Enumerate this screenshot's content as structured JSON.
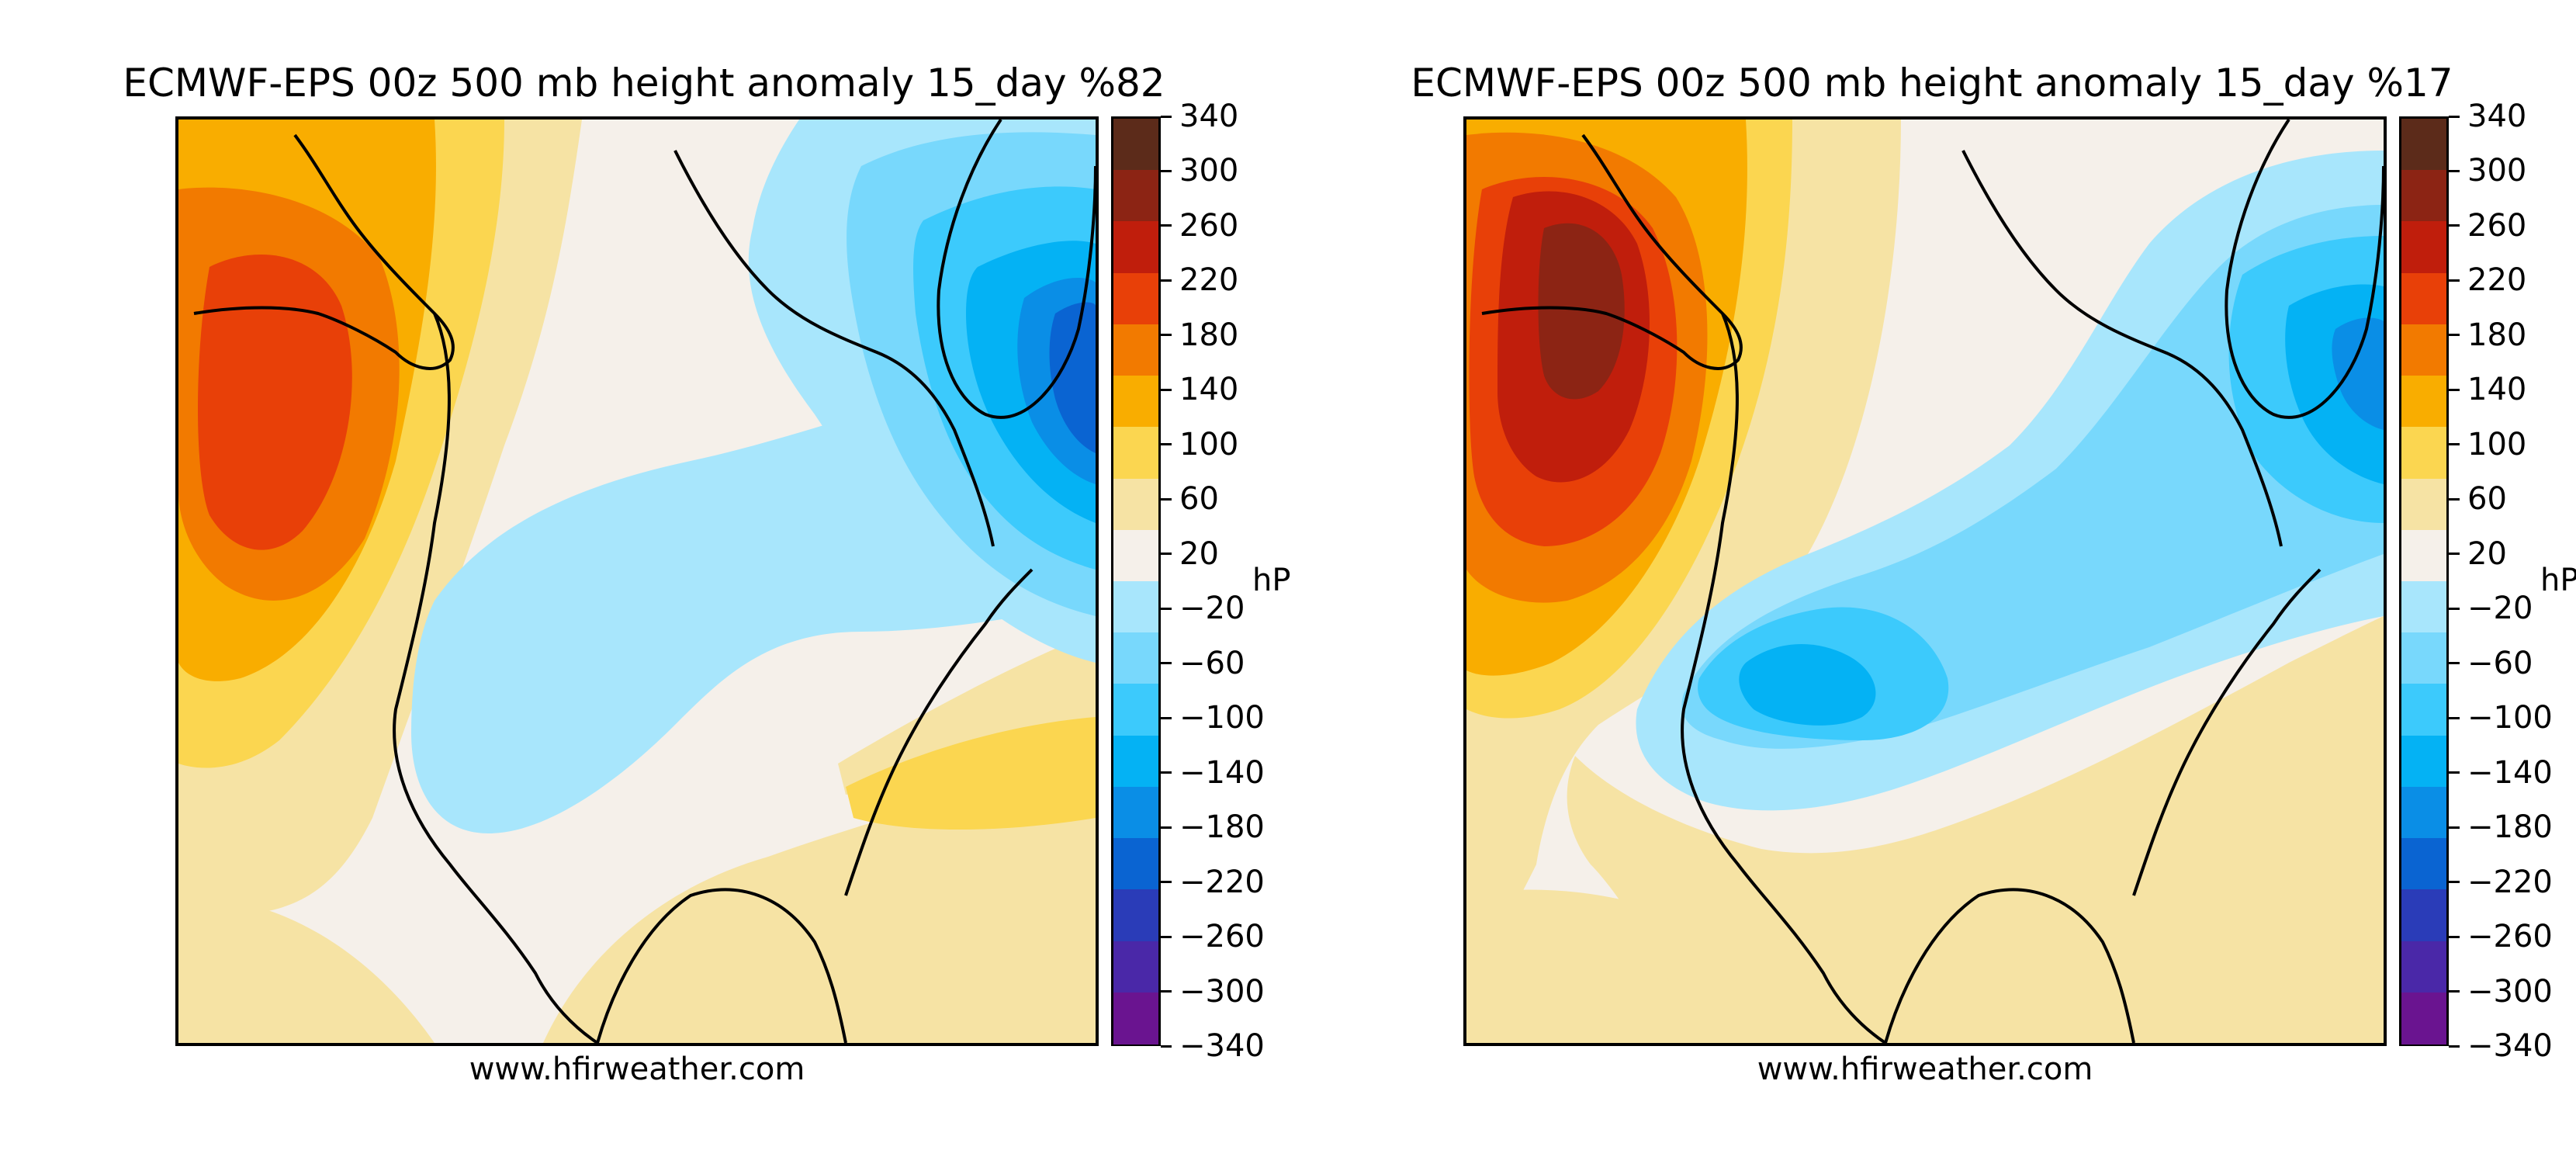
{
  "panels": [
    {
      "title": "ECMWF-EPS 00z 500 mb height anomaly 15_day %82",
      "credit": "www.hfirweather.com",
      "colorbar_unit": "hP"
    },
    {
      "title": "ECMWF-EPS 00z 500 mb height anomaly 15_day %17",
      "credit": "www.hfirweather.com",
      "colorbar_unit": "hP"
    }
  ],
  "colorbar": {
    "ticks": [
      "340",
      "300",
      "260",
      "220",
      "180",
      "140",
      "100",
      "60",
      "20",
      "−20",
      "−60",
      "−100",
      "−140",
      "−180",
      "−220",
      "−260",
      "−300",
      "−340"
    ],
    "colors_top_to_bottom": [
      "#5c2b1a",
      "#8c2414",
      "#c01e0c",
      "#e84008",
      "#f27a00",
      "#f9ad00",
      "#fbd650",
      "#f6e3a4",
      "#f5f0ea",
      "#a8e6fc",
      "#78d8fc",
      "#3ccafc",
      "#04b2f4",
      "#0a8ee6",
      "#0a64d2",
      "#2a3cb8",
      "#4a28a8",
      "#6a1490"
    ]
  },
  "map": {
    "colors": {
      "ocean_neutral": "#f5f0ea",
      "light_tan": "#f6e3a4",
      "yellow": "#fbd650",
      "orange": "#f9ad00",
      "dark_orange": "#f27a00",
      "red_orange": "#e84008",
      "red": "#c01e0c",
      "dark_red": "#8c2414",
      "light_blue": "#a8e6fc",
      "blue1": "#78d8fc",
      "blue2": "#3ccafc",
      "blue3": "#04b2f4",
      "blue4": "#0a8ee6",
      "blue5": "#0a64d2"
    }
  }
}
